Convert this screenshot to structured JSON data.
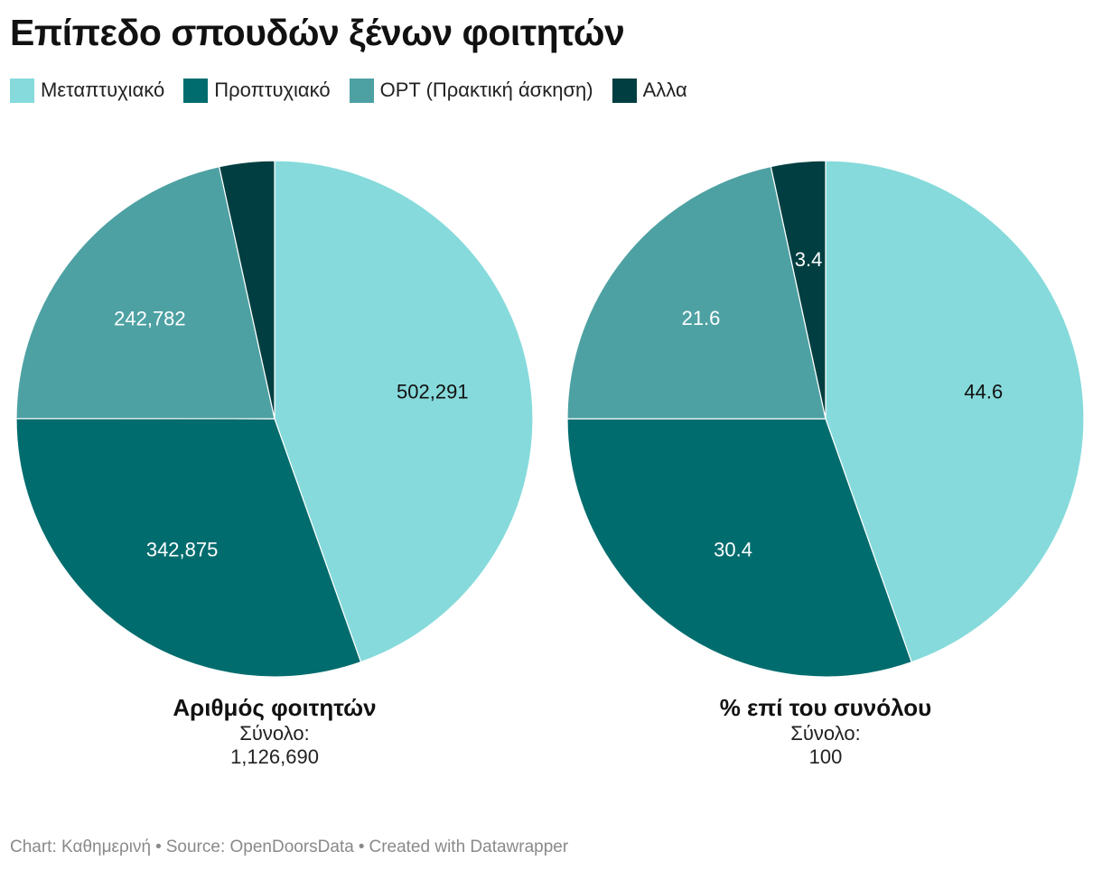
{
  "title": "Επίπεδο σπουδών ξένων φοιτητών",
  "legend": [
    {
      "label": "Μεταπτυχιακό",
      "color": "#86dadb"
    },
    {
      "label": "Προπτυχιακό",
      "color": "#006c6e"
    },
    {
      "label": "OPT (Πρακτική άσκηση)",
      "color": "#4ea1a3"
    },
    {
      "label": "Αλλα",
      "color": "#003e41"
    }
  ],
  "chart_data": [
    {
      "type": "pie",
      "title": "Αριθμός φοιτητών",
      "total_label": "Σύνολο:",
      "total_value": "1,126,690",
      "slices": [
        {
          "category": "Μεταπτυχιακό",
          "value": 502291,
          "label": "502,291"
        },
        {
          "category": "Προπτυχιακό",
          "value": 342875,
          "label": "342,875"
        },
        {
          "category": "OPT (Πρακτική άσκηση)",
          "value": 242782,
          "label": "242,782"
        },
        {
          "category": "Αλλα",
          "value": 38742,
          "label": ""
        }
      ]
    },
    {
      "type": "pie",
      "title": "% επί του συνόλου",
      "total_label": "Σύνολο:",
      "total_value": "100",
      "slices": [
        {
          "category": "Μεταπτυχιακό",
          "value": 44.6,
          "label": "44.6"
        },
        {
          "category": "Προπτυχιακό",
          "value": 30.4,
          "label": "30.4"
        },
        {
          "category": "OPT (Πρακτική άσκηση)",
          "value": 21.6,
          "label": "21.6"
        },
        {
          "category": "Αλλα",
          "value": 3.4,
          "label": "3.4"
        }
      ]
    }
  ],
  "footer": {
    "chart": "Chart: Καθημερινή",
    "source": "Source: OpenDoorsData",
    "created": "Created with Datawrapper"
  }
}
